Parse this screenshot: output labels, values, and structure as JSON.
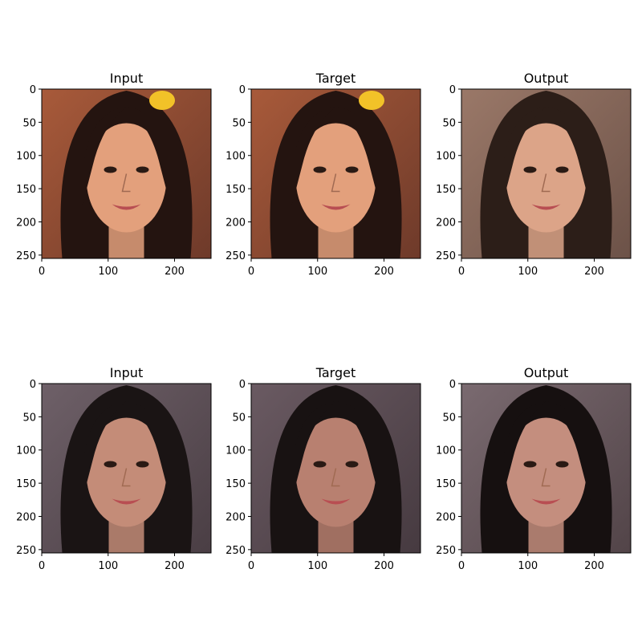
{
  "figure": {
    "background": "#ffffff",
    "description_colors": {
      "frame": "#000000"
    }
  },
  "chart_data": {
    "type": "image_grid",
    "rows": 2,
    "cols": 3,
    "title": "",
    "panels": [
      {
        "title": "Input",
        "xticks": [
          0,
          100,
          200
        ],
        "yticks": [
          0,
          50,
          100,
          150,
          200,
          250
        ],
        "xlim": [
          0,
          255
        ],
        "ylim": [
          255,
          0
        ],
        "image": "face-photo-1",
        "palette": {
          "bg1": "#a85a3a",
          "bg2": "#6e3a2a",
          "hair": "#241410",
          "skin": "#e3a07c",
          "clip": "#f2c228"
        }
      },
      {
        "title": "Target",
        "xticks": [
          0,
          100,
          200
        ],
        "yticks": [
          0,
          50,
          100,
          150,
          200,
          250
        ],
        "xlim": [
          0,
          255
        ],
        "ylim": [
          255,
          0
        ],
        "image": "face-photo-1",
        "palette": {
          "bg1": "#a85a3a",
          "bg2": "#6e3a2a",
          "hair": "#241410",
          "skin": "#e3a07c",
          "clip": "#f2c228"
        }
      },
      {
        "title": "Output",
        "xticks": [
          0,
          100,
          200
        ],
        "yticks": [
          0,
          50,
          100,
          150,
          200,
          250
        ],
        "xlim": [
          0,
          255
        ],
        "ylim": [
          255,
          0
        ],
        "image": "face-photo-1-reconstruction",
        "palette": {
          "bg1": "#9a7868",
          "bg2": "#6c5248",
          "hair": "#2c1e18",
          "skin": "#dca488",
          "clip": ""
        }
      },
      {
        "title": "Input",
        "xticks": [
          0,
          100,
          200
        ],
        "yticks": [
          0,
          50,
          100,
          150,
          200,
          250
        ],
        "xlim": [
          0,
          255
        ],
        "ylim": [
          255,
          0
        ],
        "image": "face-photo-2",
        "palette": {
          "bg1": "#6e6068",
          "bg2": "#4a3e44",
          "hair": "#1a1414",
          "skin": "#c48c78",
          "clip": ""
        }
      },
      {
        "title": "Target",
        "xticks": [
          0,
          100,
          200
        ],
        "yticks": [
          0,
          50,
          100,
          150,
          200,
          250
        ],
        "xlim": [
          0,
          255
        ],
        "ylim": [
          255,
          0
        ],
        "image": "face-photo-2",
        "palette": {
          "bg1": "#6a5a62",
          "bg2": "#463a40",
          "hair": "#181212",
          "skin": "#b88070",
          "clip": ""
        }
      },
      {
        "title": "Output",
        "xticks": [
          0,
          100,
          200
        ],
        "yticks": [
          0,
          50,
          100,
          150,
          200,
          250
        ],
        "xlim": [
          0,
          255
        ],
        "ylim": [
          255,
          0
        ],
        "image": "face-photo-2-reconstruction",
        "palette": {
          "bg1": "#7a6a70",
          "bg2": "#524448",
          "hair": "#161010",
          "skin": "#c48e7e",
          "clip": ""
        }
      }
    ]
  }
}
